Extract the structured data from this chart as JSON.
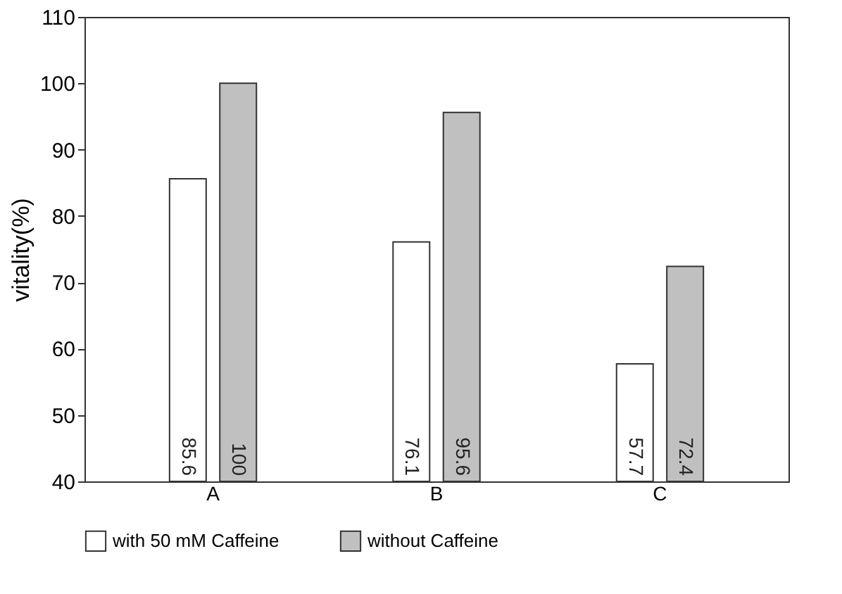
{
  "chart_data": {
    "type": "bar",
    "ylabel": "vitality(%)",
    "categories": [
      "A",
      "B",
      "C"
    ],
    "series": [
      {
        "name": "with 50 mM Caffeine",
        "color": "#ffffff",
        "values": [
          85.6,
          76.1,
          57.7
        ]
      },
      {
        "name": "without Caffeine",
        "color": "#c0c0c0",
        "values": [
          100,
          95.6,
          72.4
        ]
      }
    ],
    "ylim": [
      40,
      110
    ],
    "yticks": [
      40,
      50,
      60,
      70,
      80,
      90,
      100,
      110
    ],
    "data_labels": true,
    "grid": false,
    "legend": "bottom"
  }
}
